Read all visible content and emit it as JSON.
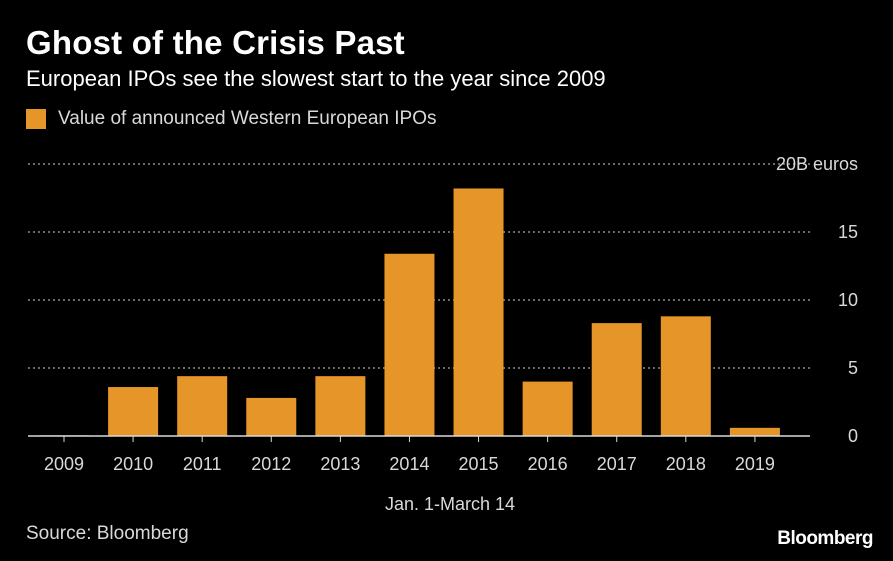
{
  "header": {
    "title": "Ghost of the Crisis Past",
    "subtitle": "European IPOs see the slowest start to the year since 2009"
  },
  "footer": {
    "source": "Source: Bloomberg",
    "brand": "Bloomberg"
  },
  "colors": {
    "background": "#000000",
    "bar": "#e69528",
    "gridline": "#8c8c8c",
    "text": "#d9d9d9"
  },
  "chart_data": {
    "type": "bar",
    "title": "Ghost of the Crisis Past",
    "subtitle": "European IPOs see the slowest start to the year since 2009",
    "xlabel": "Jan. 1-March 14",
    "ylabel": "",
    "y_unit_label": "20B euros",
    "y_tick_labels": [
      "0",
      "5",
      "10",
      "15",
      "20B euros"
    ],
    "y_ticks": [
      0,
      5,
      10,
      15,
      20
    ],
    "ylim": [
      0,
      20
    ],
    "grid": true,
    "y_axis_side": "right",
    "legend_position": "top-left",
    "categories": [
      "2009",
      "2010",
      "2011",
      "2012",
      "2013",
      "2014",
      "2015",
      "2016",
      "2017",
      "2018",
      "2019"
    ],
    "series": [
      {
        "name": "Value of announced Western European IPOs",
        "color": "#e69528",
        "values": [
          0.05,
          3.6,
          4.4,
          2.8,
          4.4,
          13.4,
          18.2,
          4.0,
          8.3,
          8.8,
          0.6
        ]
      }
    ]
  }
}
